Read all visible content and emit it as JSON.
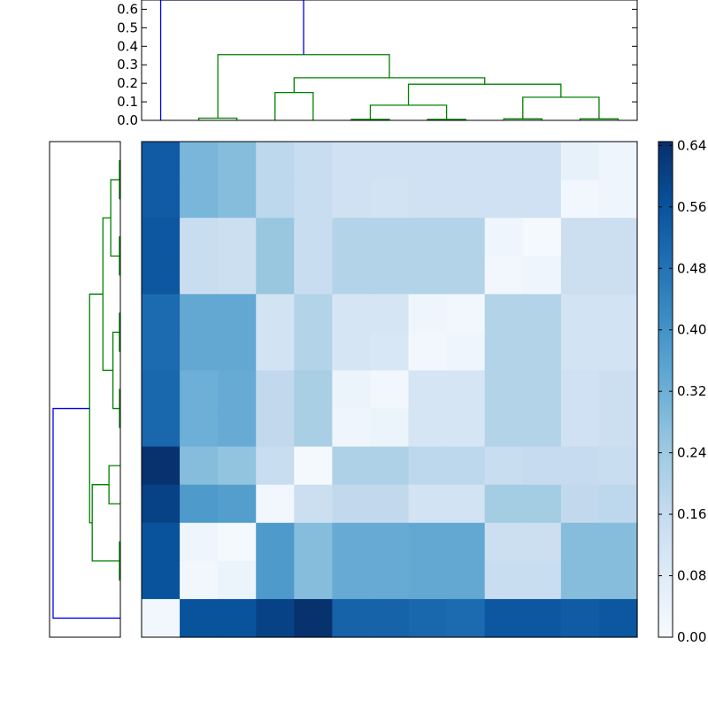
{
  "chart_data": [
    {
      "type": "dendrogram",
      "orientation": "top",
      "ylim": [
        0,
        0.65
      ],
      "ytick_labels": [
        "0.0",
        "0.1",
        "0.2",
        "0.3",
        "0.4",
        "0.5",
        "0.6"
      ],
      "leaf_order": [
        0,
        1,
        2,
        3,
        4,
        5,
        6,
        7,
        8,
        9,
        10,
        11,
        12
      ],
      "links": [
        {
          "left": 1,
          "right": 2,
          "height": 0.012,
          "color": "#008000"
        },
        {
          "left": 3,
          "right": 4,
          "height": 0.15,
          "color": "#008000"
        },
        {
          "left": 5,
          "right": 6,
          "height": 0.005,
          "color": "#008000"
        },
        {
          "left": 7,
          "right": 8,
          "height": 0.005,
          "color": "#008000"
        },
        {
          "left": 9,
          "right": 10,
          "height": 0.008,
          "color": "#008000"
        },
        {
          "left": 11,
          "right": 12,
          "height": 0.008,
          "color": "#008000"
        },
        {
          "left": "5-6",
          "right": "7-8",
          "height": 0.082,
          "color": "#008000"
        },
        {
          "left": "9-10",
          "right": "11-12",
          "height": 0.125,
          "color": "#008000"
        },
        {
          "left": "5-8",
          "right": "9-12",
          "height": 0.195,
          "color": "#008000"
        },
        {
          "left": "3-4",
          "right": "5-12",
          "height": 0.23,
          "color": "#008000"
        },
        {
          "left": "1-2",
          "right": "3-12",
          "height": 0.355,
          "color": "#008000"
        },
        {
          "left": 0,
          "right": "1-12",
          "height": 0.65,
          "color": "#0000ff"
        }
      ]
    },
    {
      "type": "dendrogram",
      "orientation": "left",
      "leaf_order_top_to_bottom": [
        0,
        1,
        2,
        3,
        4,
        5,
        6,
        7,
        8,
        9,
        10,
        11,
        12
      ],
      "links": [
        {
          "top": 0,
          "bottom": 1,
          "height": 0.0065,
          "color": "#008000"
        },
        {
          "top": 2,
          "bottom": 3,
          "height": 0.0065,
          "color": "#008000"
        },
        {
          "top": "0-1",
          "bottom": "2-3",
          "height": 0.07,
          "color": "#008000"
        },
        {
          "top": 4,
          "bottom": 5,
          "height": 0.0065,
          "color": "#008000"
        },
        {
          "top": 6,
          "bottom": 7,
          "height": 0.006,
          "color": "#008000"
        },
        {
          "top": "4-5",
          "bottom": "6-7",
          "height": 0.054,
          "color": "#008000"
        },
        {
          "top": "0-3",
          "bottom": "4-7",
          "height": 0.127,
          "color": "#008000"
        },
        {
          "top": 8,
          "bottom": 9,
          "height": 0.083,
          "color": "#008000"
        },
        {
          "top": 10,
          "bottom": 11,
          "height": 0.0065,
          "color": "#008000"
        },
        {
          "top": "8-9",
          "bottom": "10-11",
          "height": 0.205,
          "color": "#008000"
        },
        {
          "top": "0-7",
          "bottom": "8-11",
          "height": 0.224,
          "color": "#008000"
        },
        {
          "top": "0-11",
          "bottom": 12,
          "height": 0.49,
          "color": "#0000ff"
        }
      ]
    },
    {
      "type": "heatmap",
      "colormap": "Blues",
      "vmin": 0,
      "vmax": 0.645,
      "rows": 13,
      "cols": 13,
      "values": [
        [
          0.54,
          0.3,
          0.28,
          0.18,
          0.15,
          0.13,
          0.13,
          0.13,
          0.13,
          0.13,
          0.13,
          0.05,
          0.03
        ],
        [
          0.54,
          0.3,
          0.28,
          0.18,
          0.15,
          0.13,
          0.12,
          0.13,
          0.13,
          0.13,
          0.13,
          0.02,
          0.03
        ],
        [
          0.55,
          0.15,
          0.14,
          0.25,
          0.15,
          0.2,
          0.2,
          0.2,
          0.2,
          0.03,
          0.01,
          0.14,
          0.14
        ],
        [
          0.55,
          0.15,
          0.14,
          0.25,
          0.15,
          0.2,
          0.2,
          0.2,
          0.2,
          0.02,
          0.03,
          0.14,
          0.14
        ],
        [
          0.5,
          0.34,
          0.34,
          0.12,
          0.2,
          0.11,
          0.11,
          0.03,
          0.02,
          0.2,
          0.2,
          0.12,
          0.12
        ],
        [
          0.5,
          0.34,
          0.34,
          0.12,
          0.2,
          0.11,
          0.1,
          0.02,
          0.03,
          0.2,
          0.2,
          0.12,
          0.12
        ],
        [
          0.51,
          0.32,
          0.33,
          0.17,
          0.22,
          0.04,
          0.02,
          0.11,
          0.11,
          0.2,
          0.2,
          0.13,
          0.14
        ],
        [
          0.51,
          0.32,
          0.33,
          0.17,
          0.22,
          0.03,
          0.04,
          0.11,
          0.11,
          0.2,
          0.2,
          0.13,
          0.14
        ],
        [
          0.64,
          0.28,
          0.26,
          0.15,
          0.01,
          0.21,
          0.21,
          0.18,
          0.18,
          0.15,
          0.16,
          0.16,
          0.15
        ],
        [
          0.6,
          0.38,
          0.37,
          0.02,
          0.14,
          0.17,
          0.17,
          0.12,
          0.12,
          0.23,
          0.23,
          0.17,
          0.18
        ],
        [
          0.56,
          0.03,
          0.01,
          0.38,
          0.28,
          0.33,
          0.33,
          0.34,
          0.34,
          0.14,
          0.14,
          0.28,
          0.28
        ],
        [
          0.56,
          0.02,
          0.04,
          0.38,
          0.28,
          0.33,
          0.33,
          0.34,
          0.34,
          0.15,
          0.15,
          0.28,
          0.28
        ],
        [
          0.02,
          0.56,
          0.56,
          0.6,
          0.64,
          0.52,
          0.52,
          0.51,
          0.5,
          0.55,
          0.55,
          0.54,
          0.55
        ]
      ]
    },
    {
      "type": "colorbar",
      "range": [
        0,
        0.645
      ],
      "tick_values": [
        0,
        0.08,
        0.16,
        0.24,
        0.32,
        0.4,
        0.48,
        0.56,
        0.64
      ],
      "tick_labels": [
        "0.00",
        "0.08",
        "0.16",
        "0.24",
        "0.32",
        "0.40",
        "0.48",
        "0.56",
        "0.64"
      ]
    }
  ]
}
